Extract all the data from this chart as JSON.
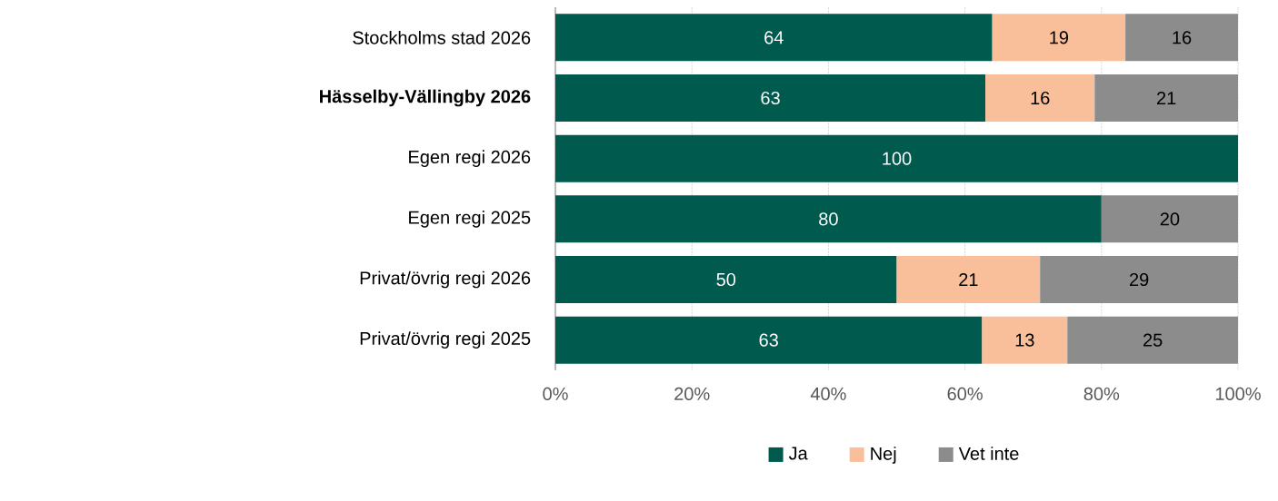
{
  "chart_data": {
    "type": "bar",
    "orientation": "horizontal",
    "stacked": true,
    "grid": "x",
    "legend": "bottom",
    "categories": [
      "Stockholms stad 2026",
      "**Hässelby-Vällingby 2026**",
      "Egen regi 2026",
      "Egen regi 2025",
      "Privat/övrig regi 2026",
      "Privat/övrig regi 2025"
    ],
    "series": [
      {
        "name": "Ja",
        "color": "#005a4e",
        "values": [
          64,
          63,
          100,
          80,
          50,
          62.5
        ],
        "value_labels": [
          "64",
          "63",
          "100",
          "80",
          "50",
          "63"
        ]
      },
      {
        "name": "Nej",
        "color": "#f8bf9a",
        "values": [
          19.5,
          16,
          null,
          null,
          21,
          12.5
        ],
        "value_labels": [
          "19",
          "16",
          null,
          null,
          "21",
          "13"
        ]
      },
      {
        "name": "Vet inte",
        "color": "#8c8c8c",
        "values": [
          16.5,
          21,
          null,
          20,
          29,
          25
        ],
        "value_labels": [
          "16",
          "21",
          null,
          "20",
          "29",
          "25"
        ]
      }
    ],
    "xlim": [
      0,
      100
    ],
    "xticks": [
      {
        "value": 0,
        "label": "0%"
      },
      {
        "value": 20,
        "label": "20%"
      },
      {
        "value": 40,
        "label": "40%"
      },
      {
        "value": 60,
        "label": "60%"
      },
      {
        "value": 80,
        "label": "80%"
      },
      {
        "value": 100,
        "label": "100%"
      }
    ]
  }
}
